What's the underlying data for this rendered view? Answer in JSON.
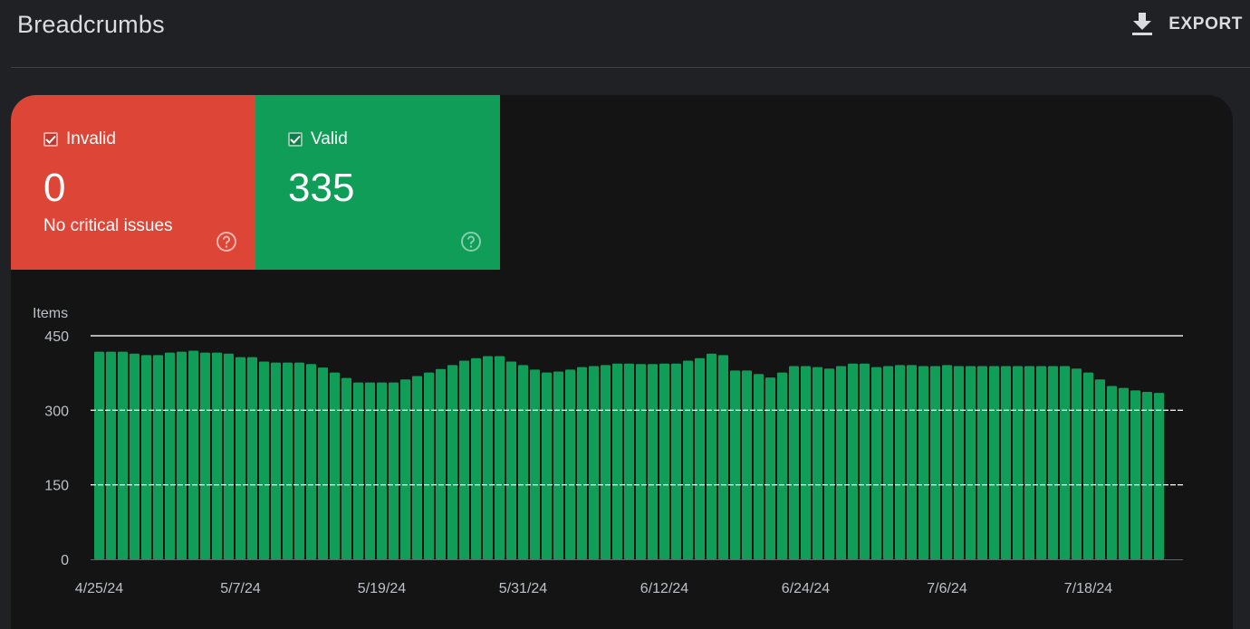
{
  "header": {
    "title": "Breadcrumbs",
    "export_label": "EXPORT",
    "export_icon": "download-icon"
  },
  "cards": {
    "invalid": {
      "label": "Invalid",
      "value": "0",
      "subtitle": "No critical issues",
      "color": "#dd4637",
      "checked": true
    },
    "valid": {
      "label": "Valid",
      "value": "335",
      "color": "#0f9d58",
      "checked": true
    }
  },
  "chart_data": {
    "type": "bar",
    "ylabel": "Items",
    "ylim": [
      0,
      450
    ],
    "yticks": [
      0,
      150,
      300,
      450
    ],
    "grid": true,
    "bar_color": "#0f9d58",
    "x_tick_labels": [
      "4/25/24",
      "5/7/24",
      "5/19/24",
      "5/31/24",
      "6/12/24",
      "6/24/24",
      "7/6/24",
      "7/18/24"
    ],
    "start_date": "2024-04-25",
    "series": [
      {
        "values": [
          418,
          418,
          418,
          414,
          411,
          411,
          416,
          418,
          420,
          416,
          416,
          414,
          407,
          407,
          398,
          396,
          396,
          396,
          393,
          386,
          376,
          365,
          356,
          356,
          356,
          356,
          362,
          369,
          376,
          383,
          391,
          400,
          405,
          409,
          409,
          398,
          391,
          382,
          376,
          378,
          382,
          387,
          389,
          391,
          394,
          394,
          393,
          393,
          394,
          394,
          400,
          405,
          414,
          411,
          380,
          380,
          373,
          366,
          376,
          389,
          389,
          387,
          384,
          389,
          394,
          394,
          387,
          389,
          391,
          391,
          389,
          389,
          391,
          389,
          389,
          389,
          389,
          389,
          389,
          389,
          389,
          389,
          389,
          384,
          376,
          362,
          349,
          345,
          340,
          337,
          335
        ]
      }
    ]
  }
}
